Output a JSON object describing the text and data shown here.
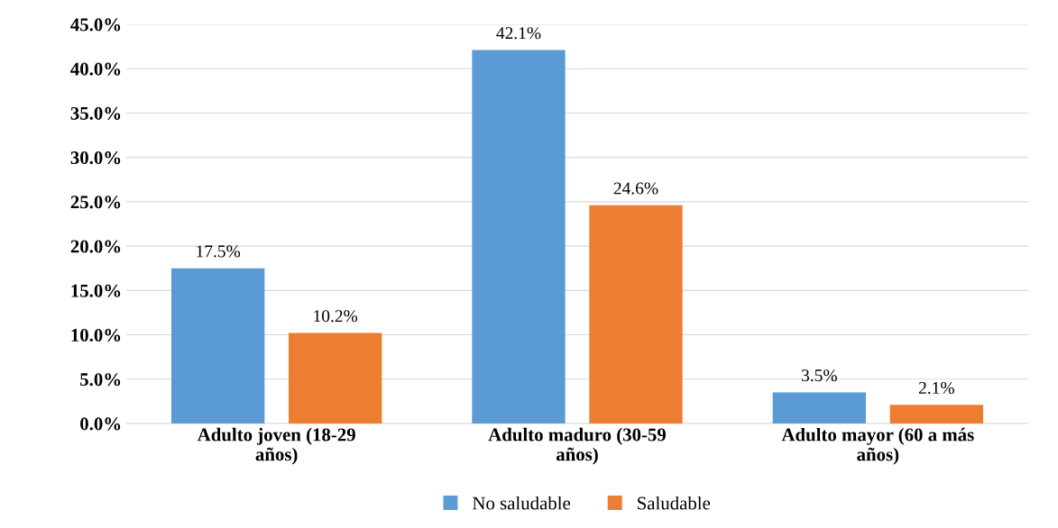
{
  "chart_data": {
    "type": "bar",
    "categories": [
      "Adulto joven (18-29\naños)",
      "Adulto maduro (30-59\naños)",
      "Adulto mayor (60 a más\naños)"
    ],
    "series": [
      {
        "name": "No saludable",
        "color": "#5b9bd5",
        "values": [
          17.5,
          42.1,
          3.5
        ],
        "value_labels": [
          "17.5%",
          "42.1%",
          "3.5%"
        ]
      },
      {
        "name": "Saludable",
        "color": "#ed7d31",
        "values": [
          10.2,
          24.6,
          2.1
        ],
        "value_labels": [
          "10.2%",
          "24.6%",
          "2.1%"
        ]
      }
    ],
    "ylim": [
      0,
      45
    ],
    "yticks": [
      {
        "value": 0,
        "label": "0.0%"
      },
      {
        "value": 5,
        "label": "5.0%"
      },
      {
        "value": 10,
        "label": "10.0%"
      },
      {
        "value": 15,
        "label": "15.0%"
      },
      {
        "value": 20,
        "label": "20.0%"
      },
      {
        "value": 25,
        "label": "25.0%"
      },
      {
        "value": 30,
        "label": "30.0%"
      },
      {
        "value": 35,
        "label": "35.0%"
      },
      {
        "value": 40,
        "label": "40.0%"
      },
      {
        "value": 45,
        "label": "45.0%"
      }
    ],
    "grid": "y",
    "legend": "bottom"
  }
}
